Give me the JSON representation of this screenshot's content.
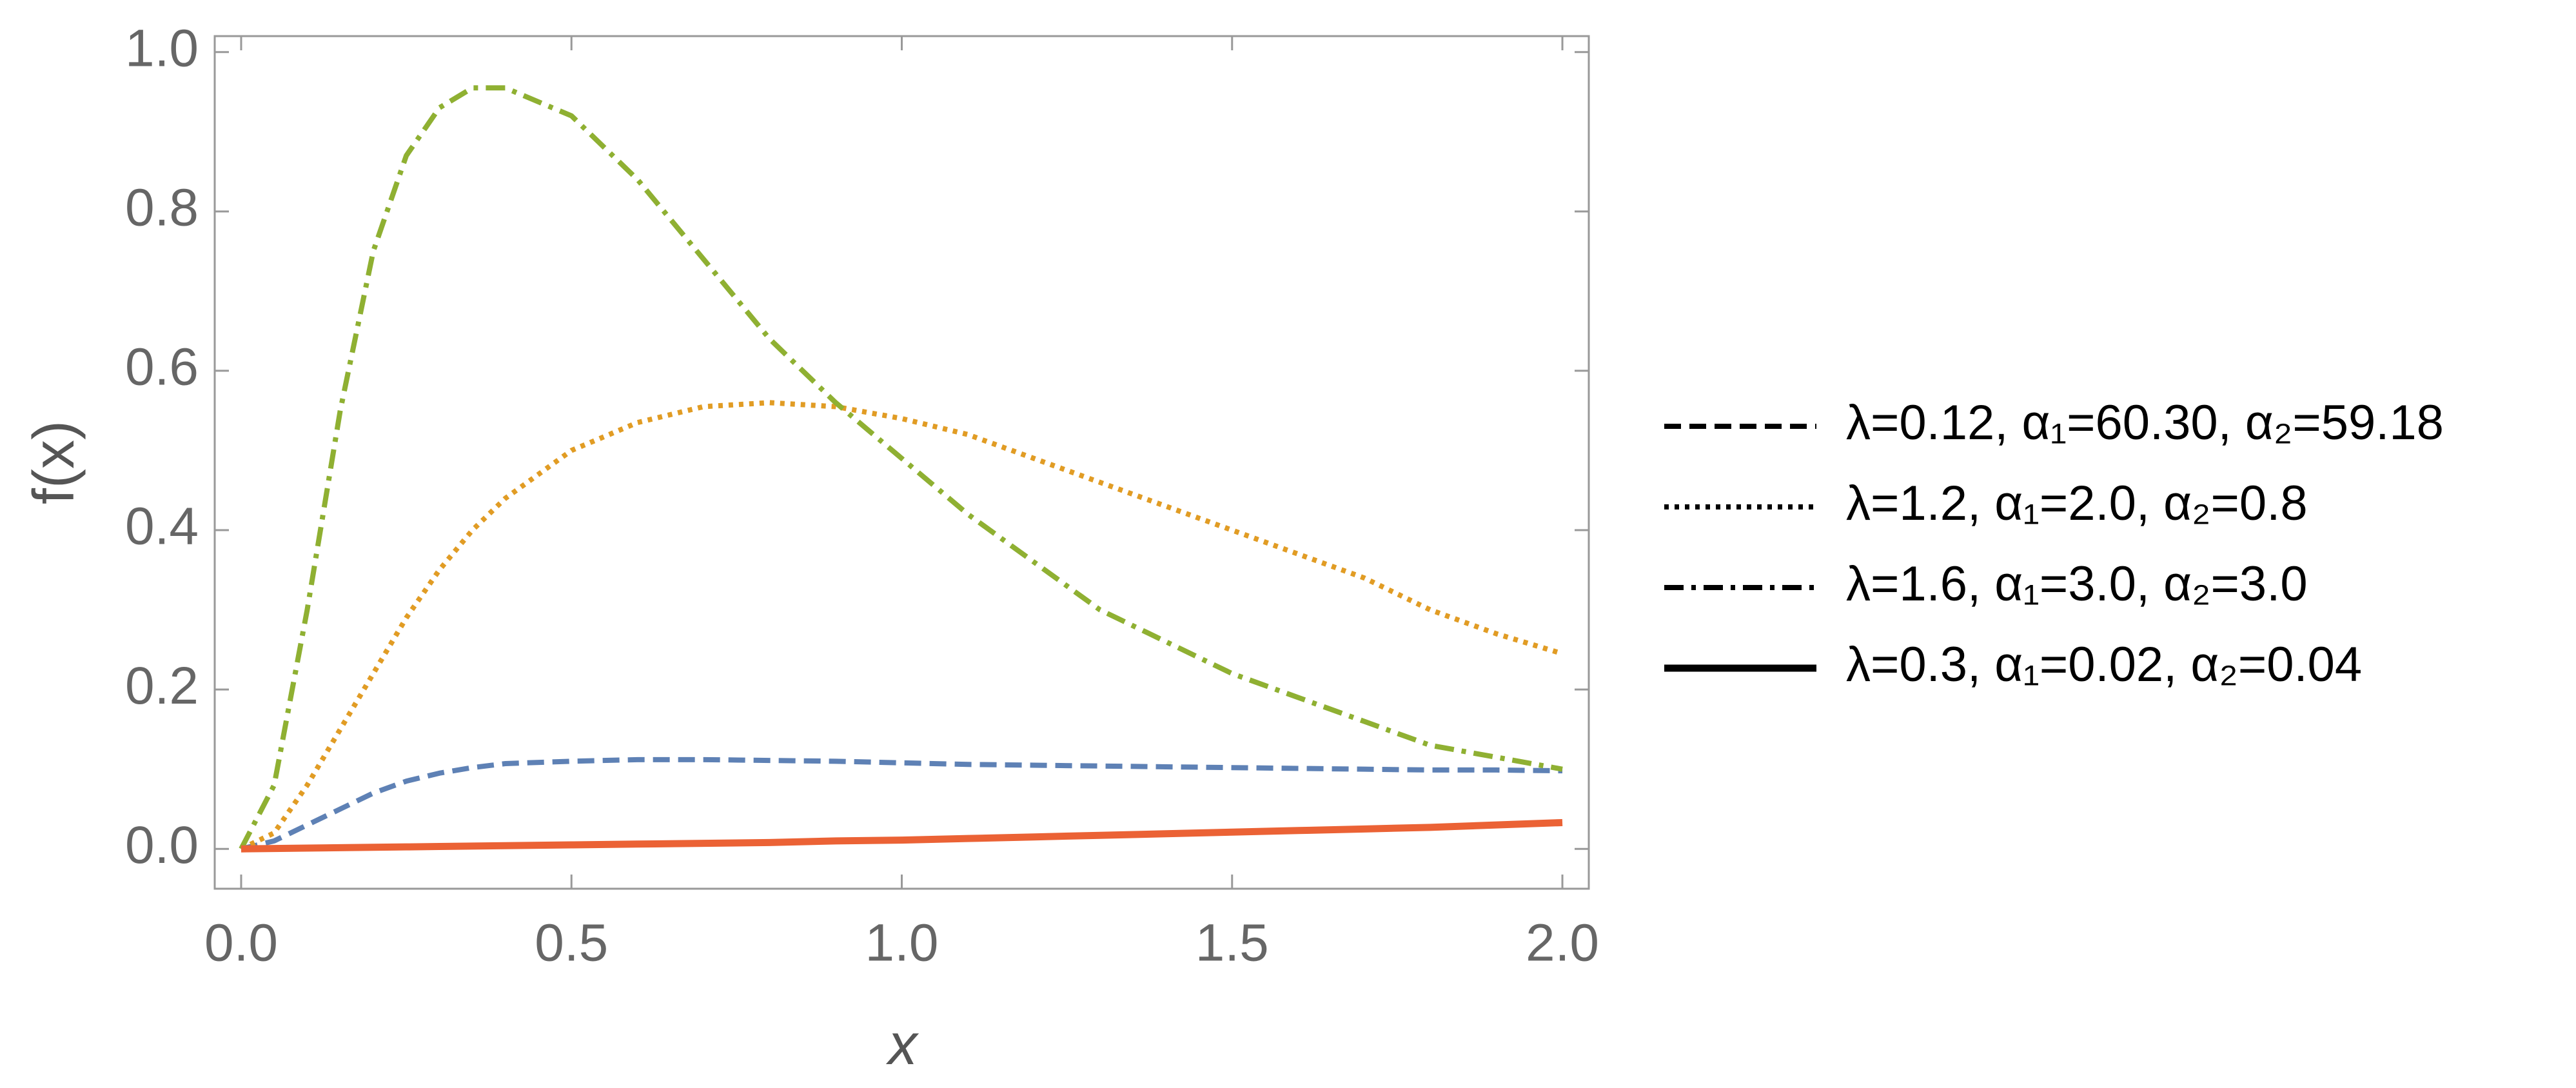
{
  "chart_data": {
    "type": "line",
    "x_label": "x",
    "y_label": "f(x)",
    "x": [
      0,
      0.05,
      0.1,
      0.15,
      0.2,
      0.25,
      0.3,
      0.35,
      0.4,
      0.5,
      0.6,
      0.7,
      0.8,
      0.9,
      1.0,
      1.1,
      1.2,
      1.3,
      1.4,
      1.5,
      1.6,
      1.7,
      1.8,
      1.9,
      2.0
    ],
    "series": [
      {
        "name": "λ=0.12, α₁=60.30, α₂=59.18",
        "color": "#5e81b5",
        "dash": "dashed",
        "values": [
          0,
          0.01,
          0.03,
          0.05,
          0.07,
          0.085,
          0.095,
          0.102,
          0.107,
          0.11,
          0.112,
          0.112,
          0.111,
          0.11,
          0.108,
          0.106,
          0.105,
          0.104,
          0.103,
          0.102,
          0.101,
          0.1,
          0.099,
          0.099,
          0.098
        ]
      },
      {
        "name": "λ=1.2, α₁=2.0, α₂=0.8",
        "color": "#e19c24",
        "dash": "dotted",
        "values": [
          0,
          0.02,
          0.08,
          0.15,
          0.22,
          0.29,
          0.35,
          0.4,
          0.44,
          0.5,
          0.535,
          0.555,
          0.56,
          0.555,
          0.54,
          0.52,
          0.49,
          0.46,
          0.43,
          0.4,
          0.37,
          0.34,
          0.3,
          0.27,
          0.245
        ]
      },
      {
        "name": "λ=1.6, α₁=3.0, α₂=3.0",
        "color": "#8fb032",
        "dash": "dashdot",
        "values": [
          0,
          0.08,
          0.3,
          0.55,
          0.75,
          0.87,
          0.93,
          0.955,
          0.955,
          0.92,
          0.84,
          0.74,
          0.64,
          0.56,
          0.49,
          0.42,
          0.36,
          0.3,
          0.26,
          0.22,
          0.19,
          0.16,
          0.13,
          0.115,
          0.1
        ]
      },
      {
        "name": "λ=0.3, α₁=0.02, α₂=0.04",
        "color": "#eb6235",
        "dash": "solid",
        "values": [
          0,
          0.0005,
          0.001,
          0.0015,
          0.002,
          0.0025,
          0.003,
          0.0035,
          0.004,
          0.005,
          0.006,
          0.007,
          0.008,
          0.01,
          0.011,
          0.013,
          0.015,
          0.017,
          0.019,
          0.021,
          0.023,
          0.025,
          0.027,
          0.03,
          0.033
        ]
      }
    ],
    "xlim": [
      -0.04,
      2.04
    ],
    "ylim": [
      -0.05,
      1.02
    ],
    "xticks": [
      {
        "value": 0,
        "label": "0.0"
      },
      0.5,
      {
        "value": 1,
        "label": "1.0"
      },
      1.5,
      {
        "value": 2,
        "label": "2.0"
      }
    ],
    "yticks": [
      {
        "value": 0,
        "label": "0.0"
      },
      0.2,
      0.4,
      0.6,
      0.8,
      {
        "value": 1,
        "label": "1.0"
      }
    ],
    "legend": "right",
    "legend_color": "#000000",
    "grid": false
  }
}
